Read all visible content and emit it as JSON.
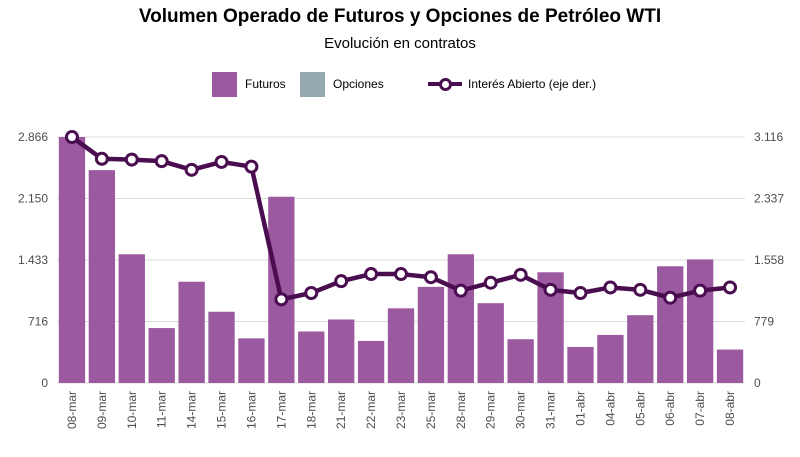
{
  "title": "Volumen Operado de Futuros y Opciones de Petróleo WTI",
  "subtitle": "Evolución en contratos",
  "legend": {
    "futuros": "Futuros",
    "opciones": "Opciones",
    "interes": "Interés Abierto (eje der.)"
  },
  "colors": {
    "futuros": "#9b5aa0",
    "opciones": "#95a9b1",
    "interes": "#4a0d4f"
  },
  "chart_data": {
    "type": "bar",
    "title": "Volumen Operado de Futuros y Opciones de Petróleo WTI",
    "subtitle": "Evolución en contratos",
    "categories": [
      "08-mar",
      "09-mar",
      "10-mar",
      "11-mar",
      "14-mar",
      "15-mar",
      "16-mar",
      "17-mar",
      "18-mar",
      "21-mar",
      "22-mar",
      "23-mar",
      "25-mar",
      "28-mar",
      "29-mar",
      "30-mar",
      "31-mar",
      "01-abr",
      "04-abr",
      "05-abr",
      "06-abr",
      "07-abr",
      "08-abr"
    ],
    "series": [
      {
        "name": "Futuros",
        "type": "bar",
        "axis": "left",
        "values": [
          2866,
          2480,
          1500,
          640,
          1180,
          830,
          520,
          2170,
          600,
          740,
          490,
          870,
          1120,
          1500,
          930,
          510,
          1290,
          420,
          560,
          790,
          1360,
          1440,
          390
        ]
      },
      {
        "name": "Opciones",
        "type": "bar",
        "axis": "left",
        "values": [
          0,
          0,
          0,
          0,
          0,
          0,
          0,
          0,
          0,
          0,
          0,
          0,
          0,
          0,
          0,
          0,
          0,
          0,
          0,
          0,
          0,
          0,
          0
        ]
      },
      {
        "name": "Interés Abierto (eje der.)",
        "type": "line",
        "axis": "right",
        "values": [
          3116,
          2840,
          2830,
          2810,
          2700,
          2800,
          2740,
          1060,
          1140,
          1290,
          1380,
          1380,
          1340,
          1170,
          1270,
          1370,
          1180,
          1140,
          1210,
          1180,
          1080,
          1170,
          1210
        ]
      }
    ],
    "y_left": {
      "ticks": [
        0,
        716,
        1433,
        2150,
        2866
      ],
      "tick_labels": [
        "0",
        "716",
        "1.433",
        "2.150",
        "2.866"
      ],
      "ylim": [
        0,
        2866
      ]
    },
    "y_right": {
      "ticks": [
        0,
        779,
        1558,
        2337,
        3116
      ],
      "tick_labels": [
        "0",
        "779",
        "1.558",
        "2.337",
        "3.116"
      ],
      "ylim": [
        0,
        3116
      ]
    },
    "grid": true,
    "legend_position": "top"
  }
}
